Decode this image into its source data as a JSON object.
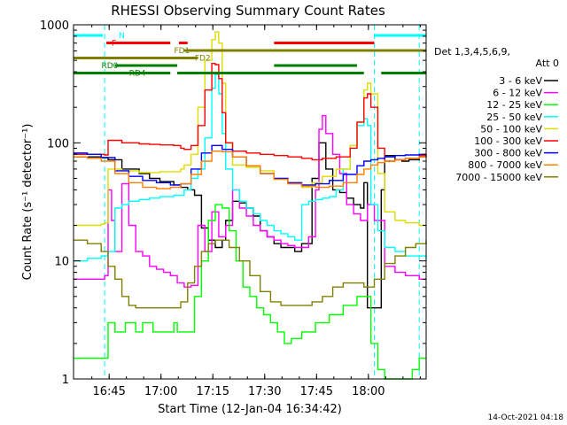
{
  "chart_data": {
    "type": "line",
    "title": "RHESSI Observing Summary Count Rates",
    "xlabel": "Start Time (12-Jan-04 16:34:42)",
    "ylabel": "Count Rate (s⁻¹ detector⁻¹)",
    "x_unit": "minutes",
    "xlim": [
      0,
      102
    ],
    "x_ticks": [
      10.3,
      25.3,
      40.3,
      55.3,
      70.3,
      85.3
    ],
    "x_tick_labels": [
      "16:45",
      "17:00",
      "17:15",
      "17:30",
      "17:45",
      "18:00"
    ],
    "y_scale": "log",
    "ylim": [
      1,
      1000
    ],
    "y_ticks": [
      1,
      10,
      100,
      1000
    ],
    "y_tick_labels": [
      "1",
      "10",
      "100",
      "1000"
    ],
    "legend_header": [
      "Det 1,3,4,5,6,9,",
      "Att 0"
    ],
    "legend_position": "right",
    "timestamp": "14-Oct-2021 04:18",
    "series": [
      {
        "name": "3 - 6 keV",
        "color": "#000000",
        "x": [
          0,
          8,
          10,
          14,
          19,
          22,
          25,
          29,
          31,
          33,
          35,
          37,
          39,
          41,
          43,
          44,
          46,
          48,
          50,
          52,
          54,
          56,
          58,
          60,
          62,
          64,
          66,
          69,
          71,
          73,
          75,
          77,
          79,
          81,
          83,
          84,
          85,
          87,
          89,
          90,
          93,
          95,
          97,
          100,
          102
        ],
        "y": [
          76,
          75,
          72,
          60,
          55,
          50,
          47,
          44,
          42,
          40,
          36,
          19,
          15,
          13,
          15,
          22,
          32,
          31,
          28,
          24,
          18,
          16,
          14,
          13,
          13,
          12,
          14,
          50,
          100,
          60,
          40,
          38,
          34,
          30,
          28,
          46,
          4,
          4,
          40,
          78,
          72,
          70,
          72,
          76,
          78
        ]
      },
      {
        "name": "6 - 12 keV",
        "color": "#ff00ff",
        "x": [
          0,
          5,
          8,
          9,
          10,
          11,
          12,
          14,
          16,
          18,
          20,
          22,
          24,
          26,
          28,
          30,
          32,
          34,
          36,
          38,
          40,
          42,
          44,
          46,
          48,
          50,
          52,
          54,
          56,
          58,
          60,
          62,
          64,
          66,
          68,
          70,
          71,
          72,
          73,
          75,
          77,
          79,
          81,
          83,
          85,
          87,
          90,
          93,
          96,
          100,
          102
        ],
        "y": [
          7,
          7,
          7,
          7.5,
          40,
          22,
          12,
          45,
          20,
          12,
          11,
          9,
          8.5,
          8,
          7.5,
          6.5,
          6,
          6.2,
          20,
          12,
          26,
          16,
          20,
          40,
          28,
          24,
          20,
          18,
          16,
          15,
          14,
          13.5,
          13,
          13,
          16,
          40,
          130,
          170,
          120,
          80,
          55,
          30,
          25,
          22,
          30,
          22,
          9,
          8,
          7.5,
          7,
          7
        ]
      },
      {
        "name": "12 - 25 keV",
        "color": "#00ff00",
        "x": [
          0,
          4,
          8,
          10,
          12,
          15,
          18,
          20,
          23,
          26,
          29,
          30,
          33,
          35,
          37,
          39,
          41,
          43,
          45,
          47,
          49,
          51,
          53,
          55,
          57,
          59,
          61,
          63,
          66,
          70,
          74,
          78,
          82,
          84,
          86,
          88,
          90,
          94,
          98,
          100,
          102
        ],
        "y": [
          1.5,
          1.5,
          1.5,
          3,
          2.5,
          3,
          2.5,
          3,
          2.5,
          2.5,
          3,
          2.5,
          2.5,
          5,
          10,
          22,
          30,
          28,
          18,
          10,
          6,
          5,
          4,
          3.5,
          3,
          2.5,
          2,
          2.2,
          2.5,
          3,
          3.5,
          4.2,
          5,
          5,
          2,
          1.2,
          1,
          1,
          1.2,
          1.5,
          1.5
        ]
      },
      {
        "name": "25 - 50 keV",
        "color": "#00ffff",
        "x": [
          0,
          4,
          8,
          9,
          10,
          12,
          14,
          16,
          19,
          22,
          25,
          29,
          30,
          32,
          34,
          36,
          38,
          40,
          41,
          42,
          43,
          44,
          46,
          48,
          50,
          52,
          54,
          56,
          58,
          60,
          62,
          64,
          66,
          68,
          70,
          72,
          74,
          76,
          78,
          80,
          82,
          84,
          85,
          86,
          88,
          90,
          93,
          96,
          100,
          102
        ],
        "y": [
          10,
          10.5,
          11,
          11,
          12,
          28,
          30,
          32,
          33,
          34,
          35,
          36,
          36,
          40,
          50,
          60,
          110,
          290,
          380,
          260,
          120,
          60,
          40,
          32,
          28,
          25,
          22,
          20,
          18,
          17,
          16,
          15,
          30,
          32,
          33,
          34,
          35,
          40,
          60,
          90,
          140,
          160,
          140,
          30,
          18,
          13,
          12,
          11,
          11,
          10.5
        ]
      },
      {
        "name": "50 - 100 keV",
        "color": "#dddd00",
        "x": [
          0,
          8,
          9,
          10,
          14,
          19,
          22,
          25,
          29,
          31,
          32,
          34,
          36,
          38,
          40,
          41,
          42,
          43,
          44,
          46,
          50,
          54,
          58,
          62,
          66,
          69,
          72,
          76,
          80,
          82,
          84,
          85,
          86,
          88,
          90,
          93,
          96,
          100,
          102
        ],
        "y": [
          20,
          20.5,
          21,
          60,
          58,
          56,
          56,
          57,
          57,
          60,
          65,
          80,
          200,
          500,
          750,
          870,
          700,
          320,
          100,
          65,
          62,
          58,
          50,
          45,
          42,
          46,
          52,
          60,
          95,
          150,
          280,
          320,
          260,
          55,
          26,
          22,
          21,
          20,
          20
        ]
      },
      {
        "name": "100 - 300 keV",
        "color": "#ff0000",
        "x": [
          0,
          8,
          9,
          10,
          14,
          19,
          22,
          25,
          29,
          31,
          32,
          34,
          36,
          38,
          40,
          41,
          42,
          43,
          44,
          46,
          50,
          54,
          58,
          62,
          66,
          69,
          72,
          76,
          80,
          82,
          84,
          85,
          86,
          88,
          90,
          93,
          96,
          100,
          102
        ],
        "y": [
          80,
          80,
          79,
          105,
          100,
          98,
          97,
          96,
          95,
          90,
          88,
          95,
          140,
          280,
          470,
          460,
          350,
          180,
          100,
          85,
          82,
          80,
          78,
          76,
          74,
          72,
          74,
          76,
          90,
          150,
          240,
          260,
          200,
          90,
          70,
          72,
          74,
          78,
          80
        ]
      },
      {
        "name": "300 - 800 keV",
        "color": "#0000ff",
        "x": [
          0,
          4,
          8,
          12,
          16,
          20,
          24,
          28,
          31,
          34,
          37,
          40,
          43,
          46,
          50,
          54,
          58,
          62,
          66,
          70,
          74,
          78,
          82,
          84,
          86,
          88,
          90,
          93,
          96,
          100,
          102
        ],
        "y": [
          82,
          80,
          75,
          58,
          52,
          48,
          46,
          44,
          45,
          60,
          82,
          95,
          88,
          76,
          64,
          55,
          50,
          46,
          44,
          45,
          48,
          54,
          64,
          70,
          72,
          74,
          76,
          78,
          79,
          80,
          80
        ]
      },
      {
        "name": "800 - 7000 keV",
        "color": "#ff8000",
        "x": [
          0,
          4,
          8,
          12,
          16,
          20,
          24,
          28,
          31,
          34,
          37,
          40,
          43,
          46,
          50,
          54,
          58,
          62,
          66,
          70,
          74,
          78,
          82,
          84,
          86,
          88,
          90,
          93,
          96,
          100,
          102
        ],
        "y": [
          76,
          74,
          70,
          55,
          46,
          42,
          41,
          42,
          45,
          54,
          70,
          85,
          84,
          76,
          64,
          55,
          49,
          45,
          43,
          42,
          43,
          46,
          54,
          60,
          65,
          68,
          70,
          72,
          74,
          76,
          77
        ]
      },
      {
        "name": "7000 - 15000 keV",
        "color": "#808000",
        "x": [
          0,
          4,
          8,
          10,
          12,
          14,
          16,
          18,
          20,
          23,
          26,
          29,
          31,
          33,
          35,
          37,
          39,
          41,
          43,
          45,
          48,
          51,
          54,
          57,
          60,
          63,
          66,
          69,
          72,
          75,
          78,
          81,
          84,
          87,
          90,
          93,
          96,
          99,
          102
        ],
        "y": [
          15,
          14,
          12,
          9,
          7,
          5,
          4.2,
          4,
          4,
          4,
          4,
          4,
          4.5,
          6.5,
          9,
          12,
          14,
          15,
          15,
          13,
          10,
          7.5,
          5.5,
          4.5,
          4.2,
          4.2,
          4.2,
          4.5,
          5,
          6,
          6.5,
          6.5,
          6,
          7,
          9.5,
          11,
          13,
          14,
          15
        ]
      }
    ],
    "annotations": {
      "flag_labels": [
        {
          "text": "N",
          "color": "#00ffff",
          "x": 10,
          "row": 1
        },
        {
          "text": "F",
          "color": "#ff0000",
          "x": 8,
          "row": 2
        },
        {
          "text": "FD1",
          "color": "#808000",
          "x": 26,
          "row": 3
        },
        {
          "text": "FD2",
          "color": "#808000",
          "x": 32,
          "row": 4
        },
        {
          "text": "RD0",
          "color": "#008000",
          "x": 5,
          "row": 5
        },
        {
          "text": "RD4",
          "color": "#008000",
          "x": 13,
          "row": 6
        }
      ],
      "flag_bars": [
        {
          "name": "night",
          "color": "#00ffff",
          "row": 1,
          "segments": [
            [
              0,
              8.5
            ],
            [
              87,
              102
            ]
          ]
        },
        {
          "name": "flare",
          "color": "#ff0000",
          "row": 2,
          "segments": [
            [
              9.5,
              28
            ],
            [
              30.5,
              33
            ],
            [
              58,
              87
            ]
          ]
        },
        {
          "name": "fast-decimation-1",
          "color": "#808000",
          "row": 3,
          "segments": [
            [
              32,
              102
            ]
          ]
        },
        {
          "name": "fast-decimation-2",
          "color": "#808000",
          "row": 4,
          "segments": [
            [
              0,
              36
            ]
          ]
        },
        {
          "name": "rear-decimation-0",
          "color": "#008000",
          "row": 5,
          "segments": [
            [
              12,
              30
            ],
            [
              58,
              82
            ]
          ]
        },
        {
          "name": "rear-decimation-4",
          "color": "#008000",
          "row": 6,
          "segments": [
            [
              0,
              28
            ],
            [
              30,
              56
            ],
            [
              56,
              84
            ],
            [
              89,
              102
            ]
          ]
        }
      ],
      "vertical_markers": [
        {
          "x": 9,
          "color": "#00ffff",
          "style": "dashed"
        },
        {
          "x": 87,
          "color": "#00ffff",
          "style": "dashed"
        },
        {
          "x": 100,
          "color": "#00ffff",
          "style": "dashed"
        }
      ]
    }
  }
}
